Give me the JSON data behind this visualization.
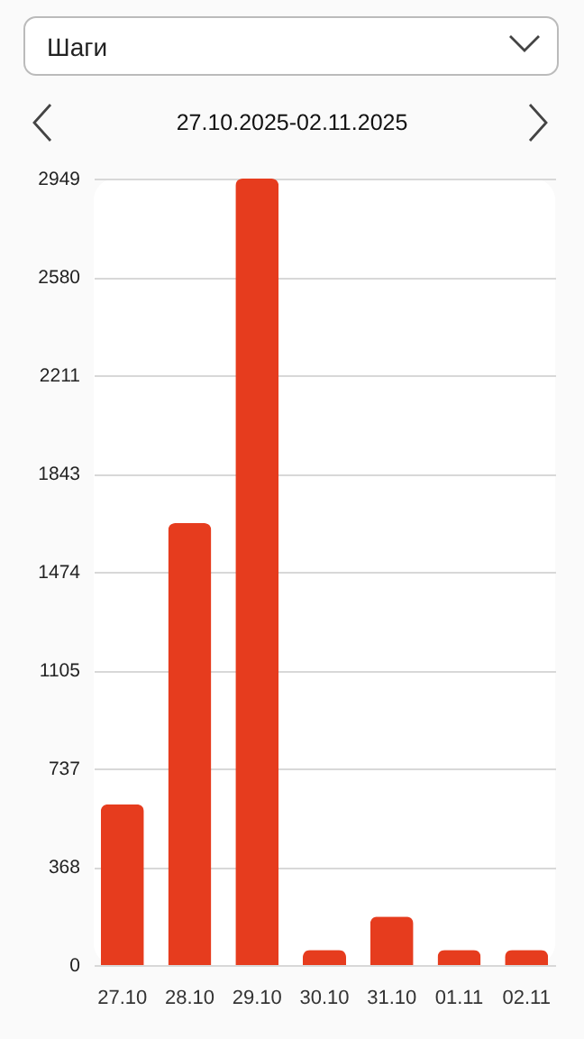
{
  "chart_data": {
    "type": "bar",
    "title": "Шаги",
    "subtitle": "27.10.2025-02.11.2025",
    "categories": [
      "27.10",
      "28.10",
      "29.10",
      "30.10",
      "31.10",
      "01.11",
      "02.11"
    ],
    "values": [
      603,
      1657,
      2949,
      57,
      182,
      57,
      57
    ],
    "color": "#e63c1e",
    "ylim": [
      0,
      2949
    ],
    "yticks": [
      0,
      368,
      737,
      1105,
      1474,
      1843,
      2211,
      2580,
      2949
    ],
    "grid": "y"
  }
}
